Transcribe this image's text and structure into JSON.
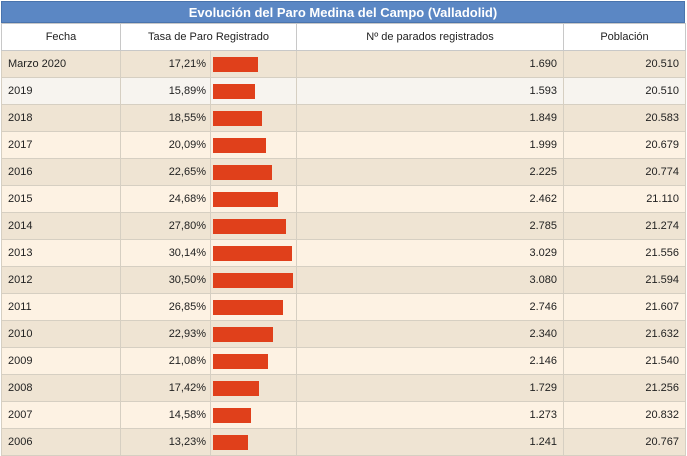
{
  "title": "Evolución del Paro Medina del Campo (Valladolid)",
  "headers": {
    "fecha": "Fecha",
    "tasa": "Tasa de Paro Registrado",
    "parados": "Nº de parados registrados",
    "poblacion": "Población"
  },
  "colors": {
    "bar": "#e0401b",
    "title_bg": "#5b87c4"
  },
  "chart_data": {
    "type": "table",
    "columns": [
      "Fecha",
      "Tasa de Paro Registrado",
      "Nº de parados registrados",
      "Población"
    ],
    "rows": [
      {
        "fecha": "Marzo 2020",
        "tasa": "17,21%",
        "tasa_value": 17.21,
        "parados": "1.690",
        "poblacion": "20.510"
      },
      {
        "fecha": "2019",
        "tasa": "15,89%",
        "tasa_value": 15.89,
        "parados": "1.593",
        "poblacion": "20.510"
      },
      {
        "fecha": "2018",
        "tasa": "18,55%",
        "tasa_value": 18.55,
        "parados": "1.849",
        "poblacion": "20.583"
      },
      {
        "fecha": "2017",
        "tasa": "20,09%",
        "tasa_value": 20.09,
        "parados": "1.999",
        "poblacion": "20.679"
      },
      {
        "fecha": "2016",
        "tasa": "22,65%",
        "tasa_value": 22.65,
        "parados": "2.225",
        "poblacion": "20.774"
      },
      {
        "fecha": "2015",
        "tasa": "24,68%",
        "tasa_value": 24.68,
        "parados": "2.462",
        "poblacion": "21.110"
      },
      {
        "fecha": "2014",
        "tasa": "27,80%",
        "tasa_value": 27.8,
        "parados": "2.785",
        "poblacion": "21.274"
      },
      {
        "fecha": "2013",
        "tasa": "30,14%",
        "tasa_value": 30.14,
        "parados": "3.029",
        "poblacion": "21.556"
      },
      {
        "fecha": "2012",
        "tasa": "30,50%",
        "tasa_value": 30.5,
        "parados": "3.080",
        "poblacion": "21.594"
      },
      {
        "fecha": "2011",
        "tasa": "26,85%",
        "tasa_value": 26.85,
        "parados": "2.746",
        "poblacion": "21.607"
      },
      {
        "fecha": "2010",
        "tasa": "22,93%",
        "tasa_value": 22.93,
        "parados": "2.340",
        "poblacion": "21.632"
      },
      {
        "fecha": "2009",
        "tasa": "21,08%",
        "tasa_value": 21.08,
        "parados": "2.146",
        "poblacion": "21.540"
      },
      {
        "fecha": "2008",
        "tasa": "17,42%",
        "tasa_value": 17.42,
        "parados": "1.729",
        "poblacion": "21.256"
      },
      {
        "fecha": "2007",
        "tasa": "14,58%",
        "tasa_value": 14.58,
        "parados": "1.273",
        "poblacion": "20.832"
      },
      {
        "fecha": "2006",
        "tasa": "13,23%",
        "tasa_value": 13.23,
        "parados": "1.241",
        "poblacion": "20.767"
      }
    ]
  }
}
